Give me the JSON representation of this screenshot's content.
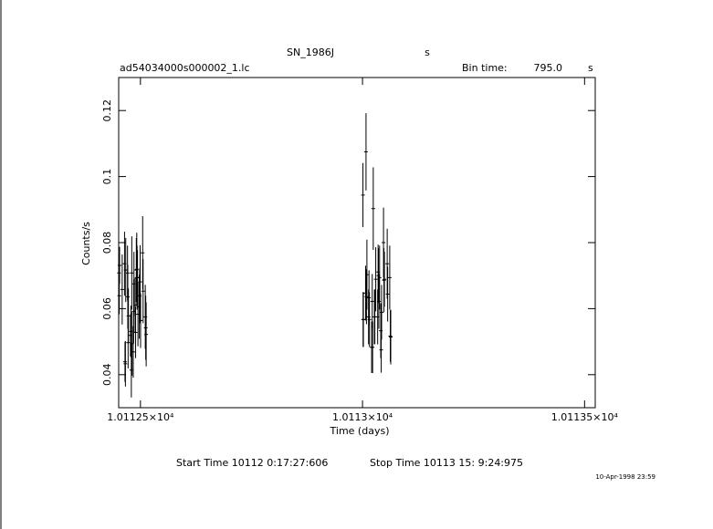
{
  "chart_data": {
    "type": "errorbar",
    "title": "SN_1986J",
    "title_unit": "s",
    "file": "ad54034000s000002_1.lc",
    "bin_time_label": "Bin time:",
    "bin_time": "795.0",
    "bin_time_unit": "s",
    "xlabel": "Time (days)",
    "ylabel": "Counts/s",
    "start_time": "Start Time 10112  0:17:27:606",
    "stop_time": "Stop Time 10113 15: 9:24:975",
    "timestamp": "10-Apr-1998 23:59",
    "color": "#000000",
    "xlim": [
      10112.451,
      10113.524
    ],
    "ylim": [
      0.03,
      0.13
    ],
    "xticks": [
      {
        "value": 10112.5,
        "label": "1.01125×10⁴"
      },
      {
        "value": 10113.0,
        "label": "1.0113×10⁴"
      },
      {
        "value": 10113.5,
        "label": "1.01135×10⁴"
      }
    ],
    "yticks": [
      0.04,
      0.06,
      0.08,
      0.1,
      0.12
    ],
    "x": [
      10112.4517,
      10112.4523,
      10112.453,
      10112.4589,
      10112.4642,
      10112.4652,
      10112.4662,
      10112.4669,
      10112.4709,
      10112.4715,
      10112.4722,
      10112.4729,
      10112.4775,
      10112.4785,
      10112.4795,
      10112.4805,
      10112.4811,
      10112.4838,
      10112.4848,
      10112.4854,
      10112.4881,
      10112.4891,
      10112.4907,
      10112.4917,
      10112.4924,
      10112.4934,
      10112.4944,
      10112.4974,
      10112.4983,
      10112.4993,
      10112.5003,
      10112.505,
      10112.506,
      10112.5109,
      10112.5119,
      10112.5129,
      10113.001,
      10113.0013,
      10113.002,
      10113.007,
      10113.0079,
      10113.0089,
      10113.0099,
      10113.0136,
      10113.0146,
      10113.0156,
      10113.0205,
      10113.0219,
      10113.0228,
      10113.0242,
      10113.0268,
      10113.0278,
      10113.0298,
      10113.0341,
      10113.0351,
      10113.0358,
      10113.0368,
      10113.0384,
      10113.0411,
      10113.0421,
      10113.043,
      10113.0473,
      10113.0483,
      10113.0493,
      10113.0556,
      10113.0566,
      10113.0613,
      10113.0626,
      10113.0636
    ],
    "values": [
      0.0708,
      0.0639,
      0.0731,
      0.0658,
      0.0736,
      0.0439,
      0.0433,
      0.0717,
      0.0708,
      0.0636,
      0.0497,
      0.0578,
      0.0519,
      0.0531,
      0.0414,
      0.0708,
      0.0494,
      0.0469,
      0.0592,
      0.0675,
      0.0611,
      0.0528,
      0.0717,
      0.0719,
      0.0694,
      0.0694,
      0.0583,
      0.0606,
      0.0639,
      0.0681,
      0.0564,
      0.0769,
      0.0653,
      0.0575,
      0.0542,
      0.0522,
      0.0944,
      0.0567,
      0.0567,
      0.0647,
      0.1075,
      0.0636,
      0.0703,
      0.0575,
      0.0633,
      0.0567,
      0.0483,
      0.0622,
      0.0483,
      0.0903,
      0.0575,
      0.0575,
      0.0689,
      0.0575,
      0.0711,
      0.07,
      0.0622,
      0.0694,
      0.0533,
      0.0475,
      0.0589,
      0.08,
      0.0686,
      0.0689,
      0.0736,
      0.0644,
      0.0694,
      0.0517,
      0.0514
    ],
    "errors": [
      0.0056,
      0.0056,
      0.0056,
      0.0106,
      0.0097,
      0.0061,
      0.0069,
      0.0097,
      0.0083,
      0.0097,
      0.0078,
      0.0083,
      0.0064,
      0.0078,
      0.0083,
      0.0111,
      0.0097,
      0.0078,
      0.0097,
      0.0097,
      0.0083,
      0.0078,
      0.0097,
      0.0111,
      0.0097,
      0.0083,
      0.0097,
      0.0097,
      0.0083,
      0.0111,
      0.0083,
      0.0111,
      0.0097,
      0.0097,
      0.0097,
      0.0097,
      0.0097,
      0.0083,
      0.0083,
      0.0083,
      0.0117,
      0.0083,
      0.0106,
      0.0083,
      0.0083,
      0.0083,
      0.0078,
      0.0083,
      0.0078,
      0.0125,
      0.0083,
      0.0083,
      0.0097,
      0.0083,
      0.0083,
      0.0083,
      0.0083,
      0.0097,
      0.0083,
      0.0069,
      0.0083,
      0.0106,
      0.0097,
      0.0083,
      0.0106,
      0.0083,
      0.0097,
      0.0078,
      0.0083
    ]
  }
}
